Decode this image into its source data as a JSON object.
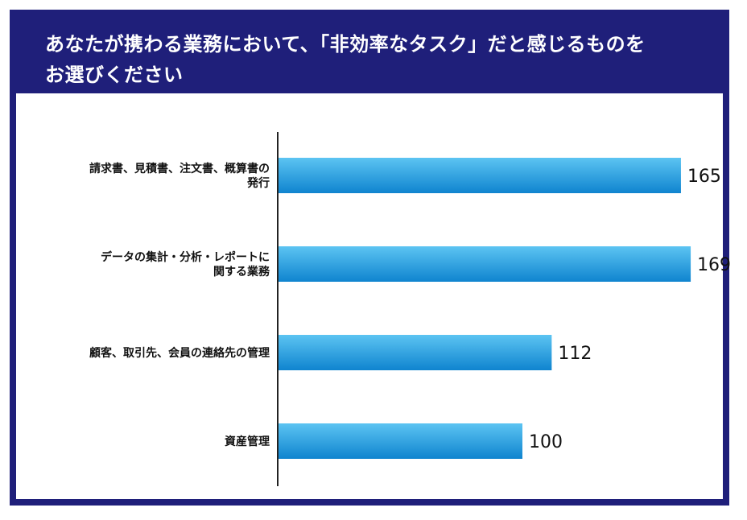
{
  "title_lines": [
    "あなたが携わる業務において、「非効率なタスク」だと感じるものを",
    "お選びください"
  ],
  "colors": {
    "frame": "#1f1f7a",
    "bar_top": "#5cc4f2",
    "bar_bottom": "#0f84cf",
    "axis": "#222222"
  },
  "chart_data": {
    "type": "bar",
    "orientation": "horizontal",
    "categories": [
      [
        "請求書、見積書、注文書、概算書の",
        "発行"
      ],
      [
        "データの集計・分析・レポートに",
        "関する業務"
      ],
      [
        "顧客、取引先、会員の連絡先の管理"
      ],
      [
        "資産管理"
      ]
    ],
    "values": [
      165,
      169,
      112,
      100
    ],
    "data_labels": [
      "165",
      "169",
      "112",
      "100"
    ],
    "grid": false,
    "legend": "none"
  }
}
